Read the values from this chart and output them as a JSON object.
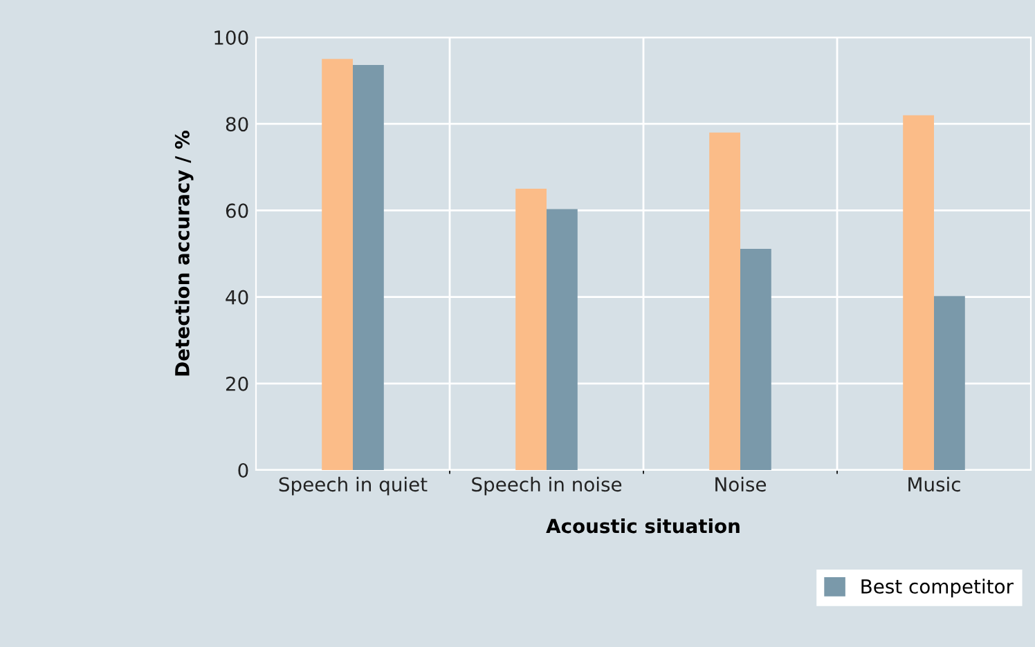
{
  "chart_data": {
    "type": "bar",
    "xlabel": "Acoustic situation",
    "ylabel": "Detection accuracy / %",
    "categories": [
      "Speech in quiet",
      "Speech in noise",
      "Noise",
      "Music"
    ],
    "series": [
      {
        "color": "#fbbc88",
        "values": [
          95,
          65,
          78,
          82
        ]
      },
      {
        "name": "Best competitor",
        "color": "#7a99aa",
        "values": [
          93.6,
          60.3,
          51.1,
          40.2
        ]
      }
    ],
    "ylim": [
      0,
      100
    ],
    "yticks": [
      0,
      20,
      40,
      60,
      80,
      100
    ],
    "grid": true,
    "legend": "bottom right"
  }
}
